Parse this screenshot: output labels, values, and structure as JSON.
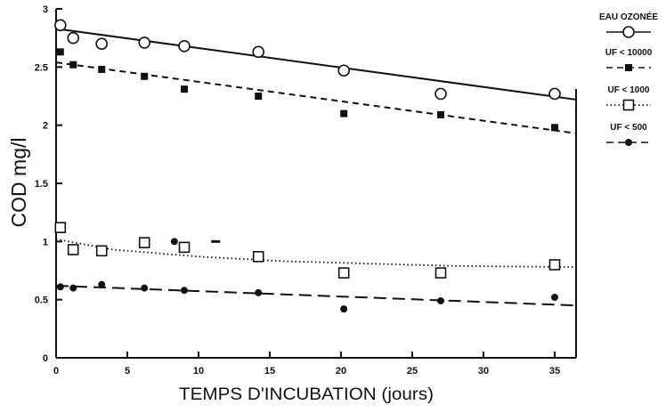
{
  "chart_data": {
    "type": "scatter",
    "xlabel": "TEMPS D'INCUBATION (jours)",
    "ylabel": "COD mg/l",
    "xlim": [
      0,
      36.5
    ],
    "ylim": [
      0,
      3
    ],
    "xticks": [
      0,
      5,
      10,
      15,
      20,
      25,
      30,
      35
    ],
    "yticks": [
      0,
      0.5,
      1,
      1.5,
      2,
      2.5,
      3
    ],
    "grid": false,
    "legend_placement": "right",
    "series": [
      {
        "name": "EAU OZONÉE",
        "marker": "circle-open",
        "line_style": "solid",
        "x": [
          0.3,
          1.2,
          3.2,
          6.2,
          9.0,
          14.2,
          20.2,
          27.0,
          35.0
        ],
        "y": [
          2.86,
          2.75,
          2.7,
          2.71,
          2.68,
          2.63,
          2.47,
          2.27,
          2.27
        ],
        "trend": [
          [
            0,
            2.83
          ],
          [
            36.5,
            2.22
          ]
        ]
      },
      {
        "name": "UF < 10000",
        "marker": "square-filled",
        "line_style": "dashed",
        "x": [
          0.3,
          1.2,
          3.2,
          6.2,
          9.0,
          14.2,
          20.2,
          27.0,
          35.0
        ],
        "y": [
          2.63,
          2.52,
          2.48,
          2.42,
          2.31,
          2.25,
          2.1,
          2.09,
          1.98
        ],
        "trend": [
          [
            0,
            2.54
          ],
          [
            36.5,
            1.93
          ]
        ]
      },
      {
        "name": "UF < 1000",
        "marker": "square-open",
        "line_style": "dotted",
        "x": [
          0.3,
          1.2,
          3.2,
          6.2,
          9.0,
          14.2,
          20.2,
          27.0,
          35.0
        ],
        "y": [
          1.12,
          0.93,
          0.92,
          0.99,
          0.95,
          0.87,
          0.73,
          0.73,
          0.8
        ],
        "trend": [
          [
            0,
            1.02
          ],
          [
            4,
            0.93
          ],
          [
            10,
            0.87
          ],
          [
            16,
            0.83
          ],
          [
            22,
            0.81
          ],
          [
            28,
            0.79
          ],
          [
            36.5,
            0.78
          ]
        ]
      },
      {
        "name": "UF < 500",
        "marker": "circle-filled",
        "line_style": "long-dash",
        "x": [
          0.3,
          1.2,
          3.2,
          6.2,
          9.0,
          14.2,
          20.2,
          27.0,
          35.0
        ],
        "y": [
          0.61,
          0.6,
          0.63,
          0.6,
          0.58,
          0.56,
          0.42,
          0.49,
          0.52
        ],
        "trend": [
          [
            0,
            0.62
          ],
          [
            36.5,
            0.45
          ]
        ]
      }
    ],
    "stray_marks": [
      {
        "x": 8.3,
        "y": 1.0,
        "marker": "circle-filled"
      },
      {
        "x": 11.2,
        "y": 1.0,
        "marker": "dash"
      }
    ]
  }
}
